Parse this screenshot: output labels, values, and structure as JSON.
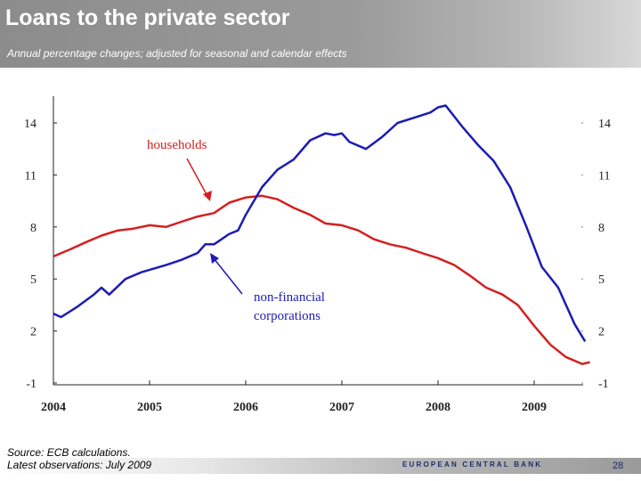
{
  "slide": {
    "title": "Loans to the private sector",
    "subtitle": "Annual percentage changes; adjusted for seasonal and calendar effects",
    "source": "Source: ECB calculations.",
    "latest": "Latest observations: July 2009",
    "bank_name": "EUROPEAN CENTRAL BANK",
    "page_number": "28"
  },
  "chart_data": {
    "type": "line",
    "title": "",
    "xlabel": "",
    "ylabel": "",
    "ylim": [
      -1,
      15
    ],
    "xlim": [
      2004.0,
      2009.6
    ],
    "yticks": [
      -1,
      2,
      5,
      8,
      11,
      14
    ],
    "ytick_labels": [
      "-1",
      "2",
      "5",
      "8",
      "11",
      "14"
    ],
    "xticks": [
      2004,
      2005,
      2006,
      2007,
      2008,
      2009
    ],
    "xtick_labels": [
      "2004",
      "2005",
      "2006",
      "2007",
      "2008",
      "2009"
    ],
    "series": [
      {
        "name": "households",
        "color": "#d42020",
        "x": [
          2004.0,
          2004.17,
          2004.33,
          2004.5,
          2004.67,
          2004.83,
          2005.0,
          2005.17,
          2005.33,
          2005.5,
          2005.67,
          2005.83,
          2006.0,
          2006.17,
          2006.33,
          2006.5,
          2006.67,
          2006.83,
          2007.0,
          2007.17,
          2007.33,
          2007.5,
          2007.67,
          2007.83,
          2008.0,
          2008.17,
          2008.33,
          2008.5,
          2008.67,
          2008.83,
          2009.0,
          2009.17,
          2009.33,
          2009.5,
          2009.58
        ],
        "y": [
          6.3,
          6.7,
          7.1,
          7.5,
          7.8,
          7.9,
          8.1,
          8.0,
          8.3,
          8.6,
          8.8,
          9.4,
          9.7,
          9.8,
          9.6,
          9.1,
          8.7,
          8.2,
          8.1,
          7.8,
          7.3,
          7.0,
          6.8,
          6.5,
          6.2,
          5.8,
          5.2,
          4.5,
          4.1,
          3.5,
          2.3,
          1.2,
          0.5,
          0.1,
          0.2
        ],
        "label": "households"
      },
      {
        "name": "non-financial corporations",
        "color": "#1c1cb4",
        "x": [
          2004.0,
          2004.08,
          2004.25,
          2004.42,
          2004.5,
          2004.58,
          2004.75,
          2004.92,
          2005.17,
          2005.33,
          2005.5,
          2005.58,
          2005.67,
          2005.83,
          2005.92,
          2006.0,
          2006.17,
          2006.33,
          2006.5,
          2006.67,
          2006.83,
          2006.92,
          2007.0,
          2007.08,
          2007.25,
          2007.42,
          2007.58,
          2007.75,
          2007.92,
          2008.0,
          2008.08,
          2008.25,
          2008.42,
          2008.58,
          2008.75,
          2008.92,
          2009.08,
          2009.25,
          2009.42,
          2009.53
        ],
        "y": [
          3.0,
          2.8,
          3.4,
          4.1,
          4.5,
          4.1,
          5.0,
          5.4,
          5.8,
          6.1,
          6.5,
          7.0,
          7.0,
          7.6,
          7.8,
          8.7,
          10.3,
          11.3,
          11.9,
          13.0,
          13.4,
          13.3,
          13.4,
          12.9,
          12.5,
          13.2,
          14.0,
          14.3,
          14.6,
          14.9,
          15.0,
          13.8,
          12.7,
          11.8,
          10.3,
          8.0,
          5.7,
          4.5,
          2.4,
          1.4
        ],
        "label": "non-financial corporations"
      }
    ],
    "annotations": [
      {
        "text": "households",
        "series": "households"
      },
      {
        "text": "non-financial corporations",
        "series": "non-financial corporations",
        "lines": [
          "non-financial",
          "corporations"
        ]
      }
    ],
    "grid": false,
    "legend": "none"
  }
}
